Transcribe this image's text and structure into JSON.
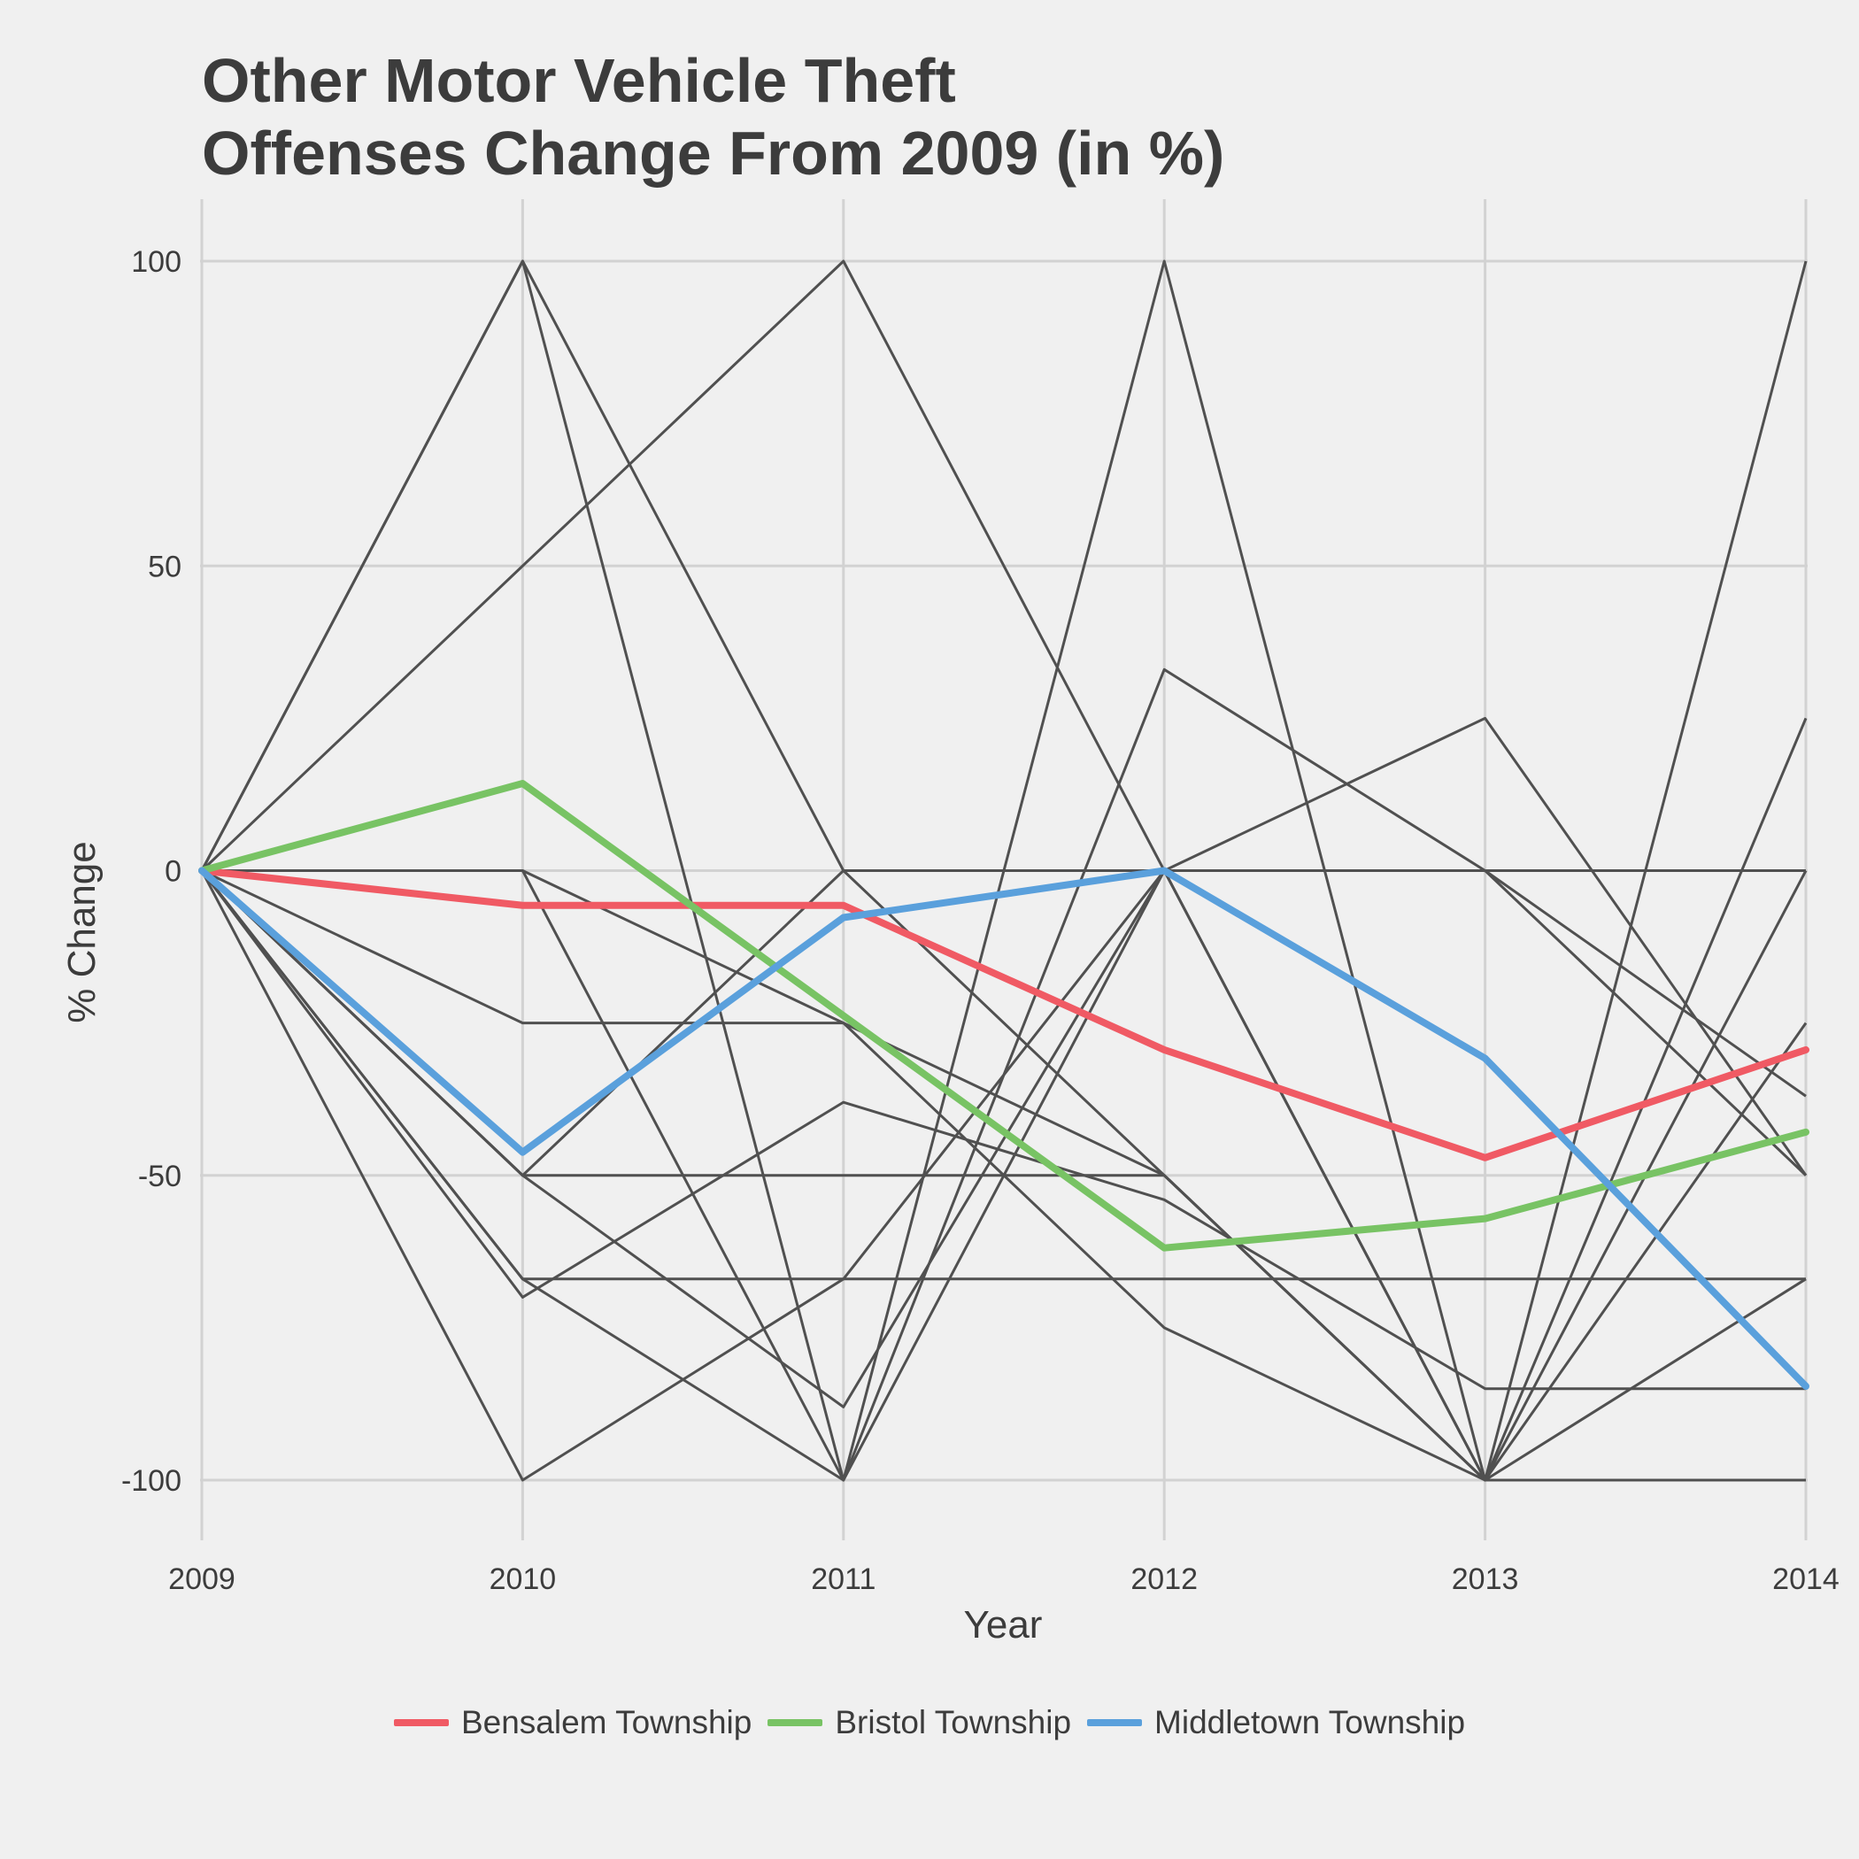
{
  "chart_data": {
    "type": "line",
    "title_lines": [
      "Other Motor Vehicle Theft",
      "Offenses Change From 2009 (in %)"
    ],
    "xlabel": "Year",
    "ylabel": "% Change",
    "categories": [
      "2009",
      "2010",
      "2011",
      "2012",
      "2013",
      "2014"
    ],
    "y_ticks": [
      100,
      50,
      0,
      -50,
      -100
    ],
    "y_tick_labels": [
      "100",
      "50",
      "0",
      "-50",
      "-100"
    ],
    "ylim": [
      -110,
      110
    ],
    "grid": true,
    "legend_position": "bottom",
    "background_series_color": "#505050",
    "background_series": [
      [
        0,
        100,
        0,
        -50,
        -100,
        -100
      ],
      [
        0,
        50,
        100,
        0,
        -100,
        25
      ],
      [
        0,
        100,
        -100,
        100,
        -100,
        100
      ],
      [
        0,
        0,
        -100,
        0,
        0,
        -50
      ],
      [
        0,
        -25,
        -25,
        -50,
        -100,
        -67
      ],
      [
        0,
        -50,
        -50,
        -50,
        -100,
        0
      ],
      [
        0,
        -67,
        -67,
        -67,
        -67,
        -67
      ],
      [
        0,
        -70,
        -38,
        -54,
        -85,
        -85
      ],
      [
        0,
        -100,
        -67,
        0,
        -100,
        -25
      ],
      [
        0,
        -67,
        -100,
        33,
        0,
        -37
      ],
      [
        0,
        0,
        -25,
        -75,
        -100,
        -100
      ],
      [
        0,
        -50,
        0,
        0,
        25,
        -50
      ],
      [
        0,
        -50,
        -88,
        0,
        0,
        0
      ]
    ],
    "series": [
      {
        "name": "Bensalem Township",
        "color": "#f05a64",
        "values": [
          0,
          -5.7,
          -5.7,
          -29.4,
          -47.1,
          -29.4
        ]
      },
      {
        "name": "Bristol Township",
        "color": "#78c364",
        "values": [
          0,
          14.3,
          -23.8,
          -61.9,
          -57.1,
          -42.9
        ]
      },
      {
        "name": "Middletown Township",
        "color": "#5aa0dc",
        "values": [
          0,
          -46.2,
          -7.7,
          0,
          -30.8,
          -84.6
        ]
      }
    ]
  }
}
